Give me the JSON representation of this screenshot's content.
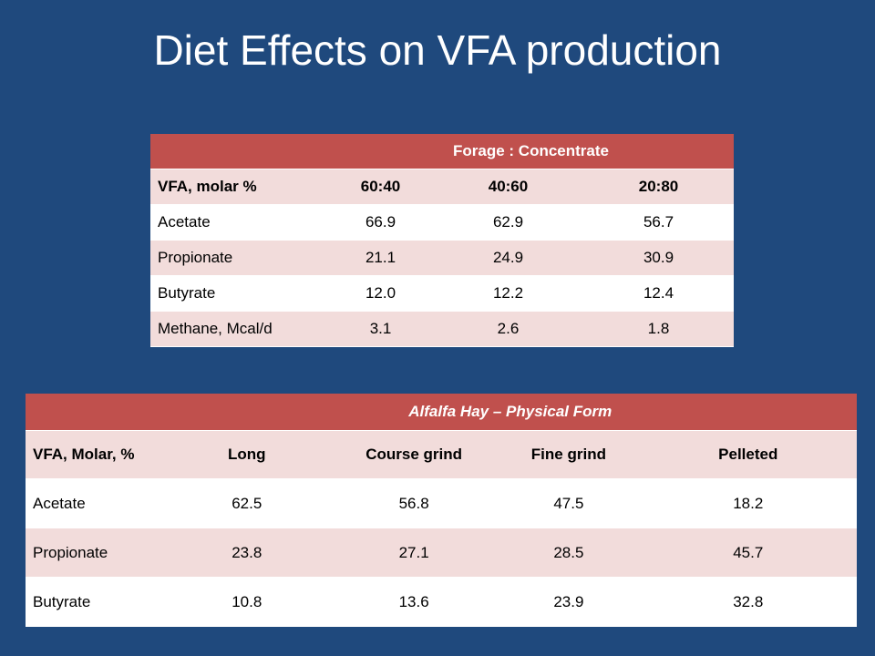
{
  "title": "Diet Effects on VFA production",
  "table1": {
    "group_header": "Forage : Concentrate",
    "columns": [
      "VFA, molar %",
      "60:40",
      "40:60",
      "20:80"
    ],
    "rows": [
      [
        "Acetate",
        "66.9",
        "62.9",
        "56.7"
      ],
      [
        "Propionate",
        "21.1",
        "24.9",
        "30.9"
      ],
      [
        "Butyrate",
        "12.0",
        "12.2",
        "12.4"
      ],
      [
        "Methane, Mcal/d",
        "3.1",
        "2.6",
        "1.8"
      ]
    ]
  },
  "table2": {
    "group_header": "Alfalfa Hay – Physical Form",
    "columns": [
      "VFA, Molar, %",
      "Long",
      "Course grind",
      "Fine grind",
      "Pelleted"
    ],
    "rows": [
      [
        "Acetate",
        "62.5",
        "56.8",
        "47.5",
        "18.2"
      ],
      [
        "Propionate",
        "23.8",
        "27.1",
        "28.5",
        "45.7"
      ],
      [
        "Butyrate",
        "10.8",
        "13.6",
        "23.9",
        "32.8"
      ]
    ]
  },
  "colors": {
    "background": "#1f497d",
    "header": "#c0504d",
    "row_shade": "#f2dcdb",
    "row_plain": "#ffffff"
  }
}
